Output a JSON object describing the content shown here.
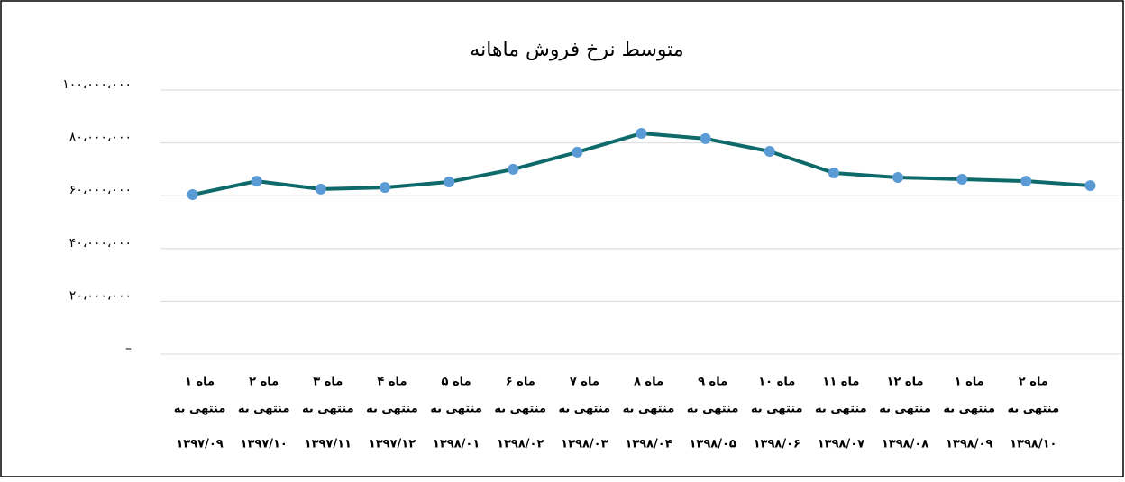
{
  "chart_data": {
    "type": "line",
    "title": "متوسط نرخ فروش ماهانه",
    "categories": [
      [
        "ماه ۱",
        "منتهی به",
        "۱۳۹۷/۰۹"
      ],
      [
        "ماه ۲",
        "منتهی به",
        "۱۳۹۷/۱۰"
      ],
      [
        "ماه ۳",
        "منتهی به",
        "۱۳۹۷/۱۱"
      ],
      [
        "ماه ۴",
        "منتهی به",
        "۱۳۹۷/۱۲"
      ],
      [
        "ماه ۵",
        "منتهی به",
        "۱۳۹۸/۰۱"
      ],
      [
        "ماه ۶",
        "منتهی به",
        "۱۳۹۸/۰۲"
      ],
      [
        "ماه ۷",
        "منتهی به",
        "۱۳۹۸/۰۳"
      ],
      [
        "ماه ۸",
        "منتهی به",
        "۱۳۹۸/۰۴"
      ],
      [
        "ماه ۹",
        "منتهی به",
        "۱۳۹۸/۰۵"
      ],
      [
        "ماه ۱۰",
        "منتهی به",
        "۱۳۹۸/۰۶"
      ],
      [
        "ماه ۱۱",
        "منتهی به",
        "۱۳۹۸/۰۷"
      ],
      [
        "ماه ۱۲",
        "منتهی به",
        "۱۳۹۸/۰۸"
      ],
      [
        "ماه ۱",
        "منتهی به",
        "۱۳۹۸/۰۹"
      ],
      [
        "ماه ۲",
        "منتهی به",
        "۱۳۹۸/۱۰"
      ],
      null
    ],
    "series": [
      {
        "color": "#0e6a6a",
        "marker_color": "#5b9bd5",
        "values": [
          60400000,
          65500000,
          62500000,
          63100000,
          65200000,
          70000000,
          76500000,
          83600000,
          81600000,
          76800000,
          68600000,
          66900000,
          66200000,
          65500000,
          63800000
        ]
      }
    ],
    "ylim": [
      0,
      100000000
    ],
    "yticks": [
      {
        "value": 0,
        "label": "–"
      },
      {
        "value": 20000000,
        "label": "۲۰،۰۰۰،۰۰۰"
      },
      {
        "value": 40000000,
        "label": "۴۰،۰۰۰،۰۰۰"
      },
      {
        "value": 60000000,
        "label": "۶۰،۰۰۰،۰۰۰"
      },
      {
        "value": 80000000,
        "label": "۸۰،۰۰۰،۰۰۰"
      },
      {
        "value": 100000000,
        "label": "۱۰۰،۰۰۰،۰۰۰"
      }
    ],
    "grid": true
  }
}
